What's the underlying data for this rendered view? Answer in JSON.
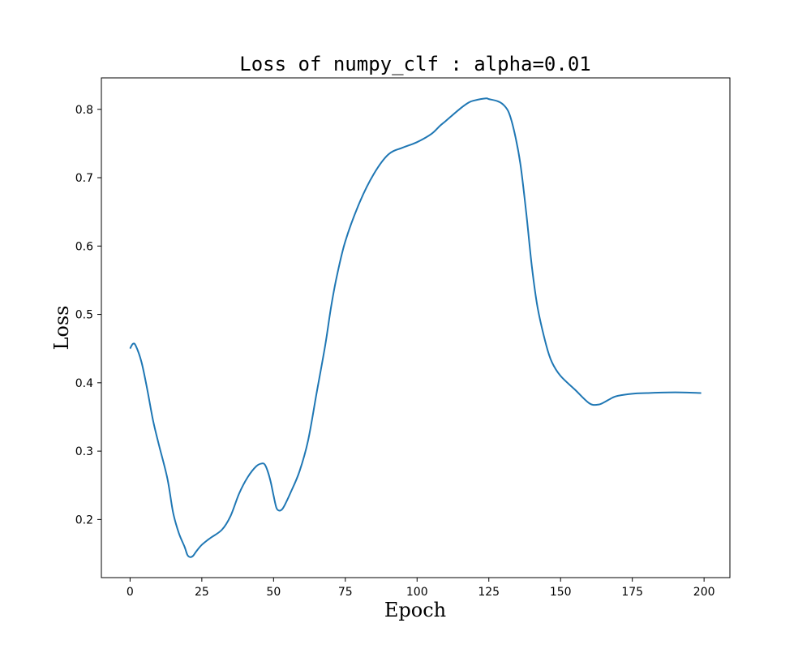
{
  "chart_data": {
    "type": "line",
    "title": "Loss of numpy_clf : alpha=0.01",
    "xlabel": "Epoch",
    "ylabel": "Loss",
    "xlim": [
      -10,
      209
    ],
    "ylim": [
      0.115,
      0.846
    ],
    "xticks": [
      0,
      25,
      50,
      75,
      100,
      125,
      150,
      175,
      200
    ],
    "yticks": [
      0.2,
      0.3,
      0.4,
      0.5,
      0.6,
      0.7,
      0.8
    ],
    "xtick_labels": [
      "0",
      "25",
      "50",
      "75",
      "100",
      "125",
      "150",
      "175",
      "200"
    ],
    "ytick_labels": [
      "0.2",
      "0.3",
      "0.4",
      "0.5",
      "0.6",
      "0.7",
      "0.8"
    ],
    "grid": false,
    "legend": "none",
    "series": [
      {
        "color": "#1f77b4",
        "x": [
          0,
          1,
          2,
          4,
          6,
          8,
          10,
          13,
          15,
          17,
          19,
          20,
          21,
          22,
          23,
          25,
          28,
          32,
          35,
          38,
          41,
          44,
          46,
          47,
          48,
          49,
          50,
          51,
          52,
          53,
          54,
          56,
          59,
          62,
          65,
          68,
          70,
          72,
          75,
          80,
          85,
          90,
          95,
          100,
          105,
          108,
          110,
          115,
          118,
          120,
          124,
          125,
          128,
          130,
          132,
          134,
          136,
          138,
          140,
          142,
          145,
          147,
          150,
          155,
          160,
          163,
          165,
          168,
          170,
          175,
          180,
          190,
          199
        ],
        "y": [
          0.45,
          0.457,
          0.454,
          0.43,
          0.39,
          0.345,
          0.31,
          0.26,
          0.21,
          0.18,
          0.16,
          0.148,
          0.145,
          0.147,
          0.153,
          0.163,
          0.173,
          0.185,
          0.205,
          0.238,
          0.262,
          0.278,
          0.282,
          0.28,
          0.27,
          0.255,
          0.235,
          0.217,
          0.213,
          0.215,
          0.222,
          0.24,
          0.27,
          0.315,
          0.385,
          0.455,
          0.51,
          0.555,
          0.607,
          0.664,
          0.706,
          0.734,
          0.744,
          0.752,
          0.764,
          0.776,
          0.783,
          0.801,
          0.81,
          0.813,
          0.816,
          0.815,
          0.812,
          0.807,
          0.795,
          0.765,
          0.72,
          0.65,
          0.57,
          0.51,
          0.455,
          0.43,
          0.41,
          0.39,
          0.37,
          0.368,
          0.371,
          0.378,
          0.381,
          0.384,
          0.385,
          0.386,
          0.385
        ]
      }
    ]
  }
}
